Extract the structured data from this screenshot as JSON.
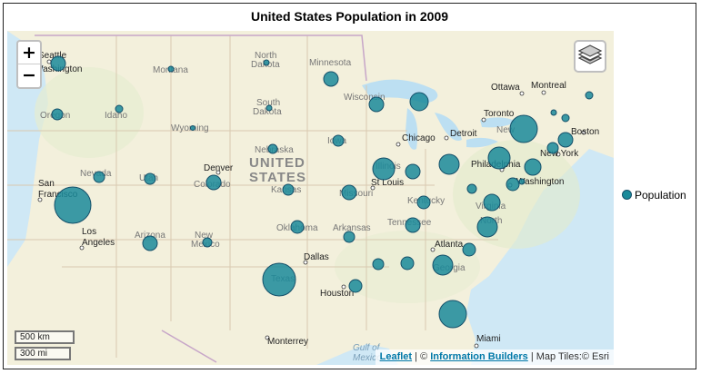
{
  "title": "United States Population in 2009",
  "legend": {
    "label": "Population",
    "color": "#1a8a9a"
  },
  "zoom": {
    "in_label": "+",
    "out_label": "−"
  },
  "scale": {
    "km_label": "500 km",
    "mi_label": "300 mi"
  },
  "attribution": {
    "leaflet": "Leaflet",
    "sep1": " | © ",
    "ib": "Information Builders",
    "tiles": " | Map Tiles:© Esri"
  },
  "center_label": [
    "UNITED",
    "STATES"
  ],
  "water_labels": [
    "Gulf of",
    "Mexico"
  ],
  "cities": [
    "Seattle",
    "Washington",
    "San",
    "Francisco",
    "Los",
    "Angeles",
    "Denver",
    "Dallas",
    "Houston",
    "Monterrey",
    "Chicago",
    "Detroit",
    "St Louis",
    "Atlanta",
    "Miami",
    "Toronto",
    "Ottawa",
    "Montreal",
    "Boston",
    "New York",
    "Philadelphia",
    "Washington"
  ],
  "states": [
    "Montana",
    "North",
    "Dakota",
    "South",
    "Dakota",
    "Minnesota",
    "Wyoming",
    "Nebraska",
    "Idaho",
    "Oregon",
    "Nevada",
    "Utah",
    "Colorado",
    "Kansas",
    "Iowa",
    "Wisconsin",
    "Illinois",
    "Missouri",
    "Oklahoma",
    "Arkansas",
    "Kentucky",
    "Tennessee",
    "Arizona",
    "New",
    "Mexico",
    "Texas",
    "Georgia",
    "Virginia",
    "North",
    "New"
  ]
}
